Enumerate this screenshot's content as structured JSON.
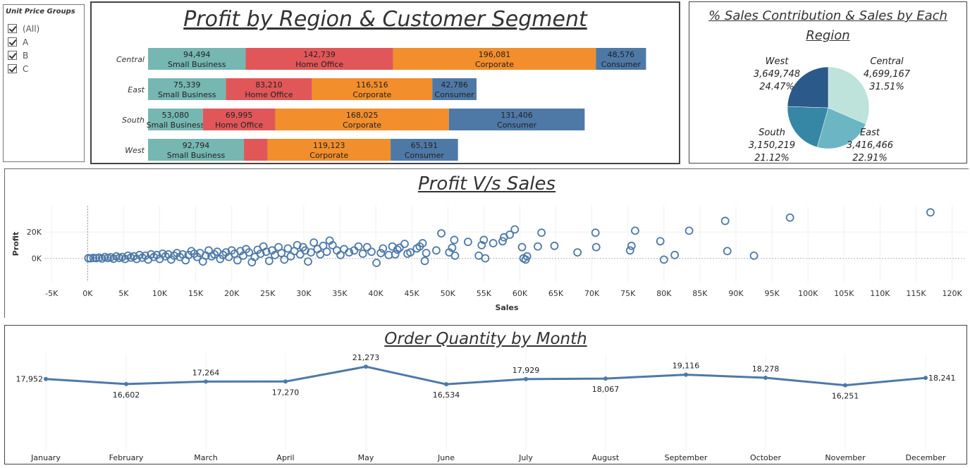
{
  "filter": {
    "title": "Unit Price Groups",
    "items": [
      {
        "label": "(All)",
        "checked": true
      },
      {
        "label": "A",
        "checked": true
      },
      {
        "label": "B",
        "checked": true
      },
      {
        "label": "C",
        "checked": true
      }
    ]
  },
  "colors": {
    "small_business": "#76b7b2",
    "home_office": "#e15759",
    "corporate": "#f28e2b",
    "consumer": "#4e79a7",
    "pie_west": "#2b5a8a",
    "pie_central": "#bde3da",
    "pie_east": "#6cb6c4",
    "pie_south": "#3686a6",
    "line": "#4e79a7",
    "scatter": "#4e79a7"
  },
  "chart_data": [
    {
      "type": "bar",
      "title": "Profit by Region & Customer Segment",
      "categories": [
        "Central",
        "East",
        "South",
        "West"
      ],
      "segments": [
        "Small Business",
        "Home Office",
        "Corporate",
        "Consumer"
      ],
      "series": [
        {
          "name": "Small Business",
          "values": [
            94494,
            75339,
            53080,
            92794
          ]
        },
        {
          "name": "Home Office",
          "values": [
            142739,
            83210,
            69995,
            22800
          ]
        },
        {
          "name": "Corporate",
          "values": [
            196081,
            116516,
            168025,
            119123
          ]
        },
        {
          "name": "Consumer",
          "values": [
            48576,
            42786,
            131406,
            65191
          ]
        }
      ],
      "labels": [
        [
          "94,494",
          "142,739",
          "196,081",
          "48,576"
        ],
        [
          "75,339",
          "83,210",
          "116,516",
          "42,786"
        ],
        [
          "53,080",
          "69,995",
          "168,025",
          "131,406"
        ],
        [
          "92,794",
          "",
          "119,123",
          "65,191"
        ]
      ]
    },
    {
      "type": "pie",
      "title": "% Sales Contribution & Sales by Each Region",
      "slices": [
        {
          "name": "Central",
          "value": 4699167,
          "value_label": "4,699,167",
          "pct_label": "31.51%"
        },
        {
          "name": "East",
          "value": 3416466,
          "value_label": "3,416,466",
          "pct_label": "22.91%"
        },
        {
          "name": "South",
          "value": 3150219,
          "value_label": "3,150,219",
          "pct_label": "21.12%"
        },
        {
          "name": "West",
          "value": 3649748,
          "value_label": "3,649,748",
          "pct_label": "24.47%"
        }
      ]
    },
    {
      "type": "scatter",
      "title": "Profit V/s Sales",
      "xlabel": "Sales",
      "ylabel": "Profit",
      "xlim": [
        -6000,
        122000
      ],
      "ylim": [
        -18000,
        40000
      ],
      "xticks": [
        -5000,
        0,
        5000,
        10000,
        15000,
        20000,
        25000,
        30000,
        35000,
        40000,
        45000,
        50000,
        55000,
        60000,
        65000,
        70000,
        75000,
        80000,
        85000,
        90000,
        95000,
        100000,
        105000,
        110000,
        115000,
        120000
      ],
      "xtick_labels": [
        "-5K",
        "0K",
        "5K",
        "10K",
        "15K",
        "20K",
        "25K",
        "30K",
        "35K",
        "40K",
        "45K",
        "50K",
        "55K",
        "60K",
        "65K",
        "70K",
        "75K",
        "80K",
        "85K",
        "90K",
        "95K",
        "100K",
        "105K",
        "110K",
        "115K",
        "120K"
      ],
      "yticks": [
        0,
        20000
      ],
      "ytick_labels": [
        "0K",
        "20K"
      ],
      "points": [
        [
          117000,
          35000
        ],
        [
          97500,
          31000
        ],
        [
          88500,
          28500
        ],
        [
          83500,
          21000
        ],
        [
          76000,
          21000
        ],
        [
          70500,
          19500
        ],
        [
          92500,
          2000
        ],
        [
          88800,
          5500
        ],
        [
          81500,
          2500
        ],
        [
          80000,
          -1000
        ],
        [
          79500,
          13000
        ],
        [
          75500,
          9500
        ],
        [
          75300,
          6000
        ],
        [
          70600,
          8500
        ],
        [
          68000,
          4500
        ],
        [
          63000,
          19500
        ],
        [
          64800,
          9500
        ],
        [
          62500,
          9000
        ],
        [
          61000,
          1500
        ],
        [
          60800,
          -1000
        ],
        [
          60500,
          0
        ],
        [
          60300,
          8500
        ],
        [
          59300,
          22000
        ],
        [
          58600,
          18000
        ],
        [
          57800,
          16000
        ],
        [
          57600,
          13000
        ],
        [
          56300,
          11500
        ],
        [
          55200,
          0
        ],
        [
          54700,
          10000
        ],
        [
          54300,
          2000
        ],
        [
          55000,
          14000
        ],
        [
          52800,
          12500
        ],
        [
          50900,
          14000
        ],
        [
          51000,
          2000
        ],
        [
          50600,
          8000
        ],
        [
          50200,
          4500
        ],
        [
          49100,
          19000
        ],
        [
          48400,
          6000
        ],
        [
          47000,
          4000
        ],
        [
          46800,
          -2000
        ],
        [
          46500,
          11500
        ],
        [
          46100,
          9000
        ],
        [
          45700,
          7500
        ],
        [
          44800,
          4500
        ],
        [
          44400,
          3500
        ],
        [
          44000,
          11000
        ],
        [
          43300,
          8000
        ],
        [
          43000,
          6500
        ],
        [
          42700,
          3000
        ],
        [
          42300,
          9000
        ],
        [
          41800,
          2500
        ],
        [
          41000,
          7500
        ],
        [
          40700,
          4000
        ],
        [
          40100,
          -3500
        ],
        [
          39400,
          5000
        ],
        [
          38800,
          8500
        ],
        [
          38200,
          3500
        ],
        [
          37600,
          9000
        ],
        [
          37000,
          6000
        ],
        [
          36300,
          4500
        ],
        [
          35600,
          7000
        ],
        [
          35100,
          2500
        ],
        [
          34600,
          6000
        ],
        [
          34000,
          10000
        ],
        [
          33600,
          13500
        ],
        [
          33200,
          5000
        ],
        [
          32700,
          9500
        ],
        [
          32300,
          3000
        ],
        [
          31900,
          7000
        ],
        [
          31400,
          12000
        ],
        [
          31000,
          4500
        ],
        [
          30600,
          -2500
        ],
        [
          30200,
          6000
        ],
        [
          29900,
          8500
        ],
        [
          29500,
          3000
        ],
        [
          29100,
          10000
        ],
        [
          28700,
          5500
        ],
        [
          28200,
          1500
        ],
        [
          27800,
          7500
        ],
        [
          27300,
          -1000
        ],
        [
          26900,
          4000
        ],
        [
          26500,
          8500
        ],
        [
          26000,
          2500
        ],
        [
          25600,
          6000
        ],
        [
          25200,
          -2000
        ],
        [
          24800,
          5000
        ],
        [
          24400,
          9000
        ],
        [
          24000,
          3500
        ],
        [
          23600,
          6500
        ],
        [
          23200,
          1000
        ],
        [
          22800,
          -3000
        ],
        [
          22400,
          4500
        ],
        [
          22000,
          7000
        ],
        [
          21600,
          2000
        ],
        [
          21200,
          5500
        ],
        [
          20800,
          -1500
        ],
        [
          20400,
          3500
        ],
        [
          20000,
          6000
        ],
        [
          19600,
          1000
        ],
        [
          19200,
          4500
        ],
        [
          18800,
          2500
        ],
        [
          18400,
          -500
        ],
        [
          18000,
          5000
        ],
        [
          17600,
          3000
        ],
        [
          17200,
          1500
        ],
        [
          16800,
          6000
        ],
        [
          16400,
          2000
        ],
        [
          16000,
          -2500
        ],
        [
          15600,
          4000
        ],
        [
          15200,
          1000
        ],
        [
          14800,
          3500
        ],
        [
          14400,
          5500
        ],
        [
          14000,
          2500
        ],
        [
          13600,
          -1500
        ],
        [
          13200,
          3000
        ],
        [
          12800,
          1000
        ],
        [
          12400,
          4000
        ],
        [
          12000,
          2000
        ],
        [
          11600,
          -1000
        ],
        [
          11200,
          3000
        ],
        [
          10800,
          1500
        ],
        [
          10400,
          3500
        ],
        [
          10000,
          -500
        ],
        [
          9600,
          2500
        ],
        [
          9200,
          1000
        ],
        [
          8800,
          3000
        ],
        [
          8400,
          -1000
        ],
        [
          8000,
          2000
        ],
        [
          7600,
          500
        ],
        [
          7200,
          2500
        ],
        [
          6800,
          -500
        ],
        [
          6400,
          1500
        ],
        [
          6000,
          500
        ],
        [
          5600,
          2000
        ],
        [
          5200,
          -500
        ],
        [
          4800,
          1000
        ],
        [
          4400,
          300
        ],
        [
          4000,
          1500
        ],
        [
          3600,
          -300
        ],
        [
          3200,
          800
        ],
        [
          2800,
          200
        ],
        [
          2400,
          1000
        ],
        [
          2000,
          -200
        ],
        [
          1600,
          500
        ],
        [
          1200,
          100
        ],
        [
          800,
          300
        ],
        [
          400,
          0
        ],
        [
          100,
          100
        ]
      ]
    },
    {
      "type": "line",
      "title": "Order Quantity by Month",
      "categories": [
        "January",
        "February",
        "March",
        "April",
        "May",
        "June",
        "July",
        "August",
        "September",
        "October",
        "November",
        "December"
      ],
      "values": [
        17952,
        16602,
        17264,
        17270,
        21273,
        16534,
        17929,
        18067,
        19116,
        18278,
        16251,
        18241
      ],
      "value_labels": [
        "17,952",
        "16,602",
        "17,264",
        "17,270",
        "21,273",
        "16,534",
        "17,929",
        "18,067",
        "19,116",
        "18,278",
        "16,251",
        "18,241"
      ]
    }
  ]
}
